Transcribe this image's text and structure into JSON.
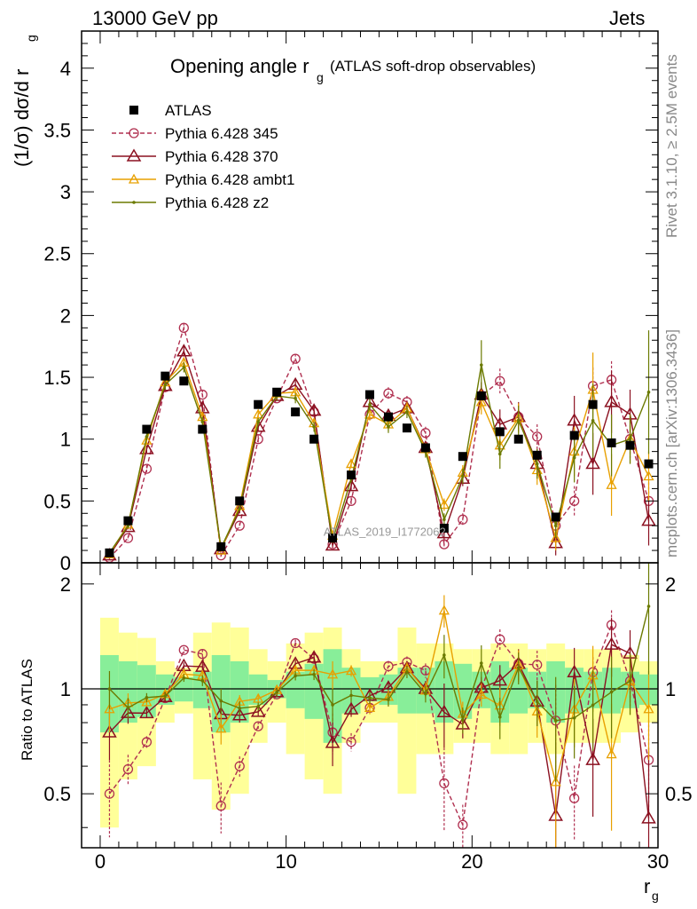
{
  "header": {
    "left": "13000 GeV pp",
    "right": "Jets"
  },
  "side_labels": {
    "rivet": "Rivet 3.1.10, ≥ 2.5M events",
    "mcplots": "mcplots.cern.ch [arXiv:1306.3436]"
  },
  "chart_data": {
    "type": "scatter",
    "title": "Opening angle r",
    "title_sub": "g",
    "title_suffix": "(ATLAS soft-drop observables)",
    "watermark": "ATLAS_2019_I1772062",
    "xlabel": "r",
    "xlabel_sub": "g",
    "ylabel": "(1/σ) dσ/d r",
    "ylabel_sub": "g",
    "ratio_ylabel": "Ratio to ATLAS",
    "xlim": [
      -1,
      30
    ],
    "ylim": [
      0,
      4.3
    ],
    "ratio_ylim": [
      0.35,
      2.3
    ],
    "ratio_log": true,
    "x_ticks": [
      "0",
      "10",
      "20",
      "30"
    ],
    "y_ticks": [
      "0",
      "0.5",
      "1",
      "1.5",
      "2",
      "2.5",
      "3",
      "3.5",
      "4"
    ],
    "ratio_ticks": [
      "0.5",
      "1",
      "2"
    ],
    "legend_position": "top-left",
    "x": [
      0.5,
      1.5,
      2.5,
      3.5,
      4.5,
      5.5,
      6.5,
      7.5,
      8.5,
      9.5,
      10.5,
      11.5,
      12.5,
      13.5,
      14.5,
      15.5,
      16.5,
      17.5,
      18.5,
      19.5,
      20.5,
      21.5,
      22.5,
      23.5,
      24.5,
      25.5,
      26.5,
      27.5,
      28.5,
      29.5
    ],
    "data": {
      "name": "ATLAS",
      "color": "#000000",
      "values": [
        0.08,
        0.34,
        1.08,
        1.51,
        1.47,
        1.08,
        0.13,
        0.5,
        1.28,
        1.38,
        1.22,
        1.0,
        0.2,
        0.71,
        1.36,
        1.18,
        1.09,
        0.93,
        0.28,
        0.86,
        1.35,
        1.06,
        1.0,
        0.87,
        0.37,
        1.03,
        1.28,
        0.97,
        0.95,
        0.8
      ],
      "band_inner": [
        0.25,
        0.2,
        0.17,
        0.1,
        0.08,
        0.12,
        0.25,
        0.2,
        0.1,
        0.06,
        0.12,
        0.18,
        0.3,
        0.15,
        0.08,
        0.1,
        0.15,
        0.15,
        0.2,
        0.18,
        0.12,
        0.2,
        0.15,
        0.12,
        0.2,
        0.15,
        0.12,
        0.15,
        0.12,
        0.1
      ],
      "band_outer": [
        0.6,
        0.45,
        0.4,
        0.2,
        0.15,
        0.45,
        0.55,
        0.5,
        0.3,
        0.2,
        0.35,
        0.45,
        0.5,
        0.3,
        0.2,
        0.2,
        0.5,
        0.35,
        0.35,
        0.3,
        0.3,
        0.35,
        0.35,
        0.3,
        0.35,
        0.3,
        0.3,
        0.3,
        0.25,
        0.2
      ]
    },
    "series": [
      {
        "name": "Pythia 6.428 345",
        "color": "#b03050",
        "marker": "open-circle",
        "dash": true,
        "values": [
          0.04,
          0.2,
          0.76,
          1.42,
          1.9,
          1.36,
          0.06,
          0.3,
          1.0,
          1.33,
          1.65,
          1.22,
          0.15,
          0.5,
          1.2,
          1.37,
          1.3,
          1.05,
          0.15,
          0.35,
          1.35,
          1.47,
          1.18,
          1.02,
          0.3,
          0.5,
          1.43,
          1.48,
          1.0,
          0.5
        ],
        "err": [
          0.01,
          0.02,
          0.03,
          0.04,
          0.04,
          0.04,
          0.01,
          0.02,
          0.03,
          0.04,
          0.04,
          0.04,
          0.02,
          0.03,
          0.05,
          0.05,
          0.05,
          0.05,
          0.04,
          0.05,
          0.08,
          0.1,
          0.1,
          0.1,
          0.08,
          0.12,
          0.15,
          0.15,
          0.15,
          0.15
        ]
      },
      {
        "name": "Pythia 6.428 370",
        "color": "#8b1020",
        "marker": "open-triangle",
        "dash": false,
        "values": [
          0.06,
          0.29,
          0.92,
          1.43,
          1.71,
          1.25,
          0.11,
          0.42,
          1.1,
          1.35,
          1.44,
          1.23,
          0.14,
          0.62,
          1.3,
          1.19,
          1.25,
          0.93,
          0.24,
          0.68,
          1.36,
          1.12,
          1.18,
          0.8,
          0.16,
          1.15,
          0.8,
          1.3,
          1.2,
          0.34
        ],
        "err": [
          0.01,
          0.02,
          0.03,
          0.04,
          0.04,
          0.04,
          0.01,
          0.02,
          0.03,
          0.04,
          0.04,
          0.04,
          0.02,
          0.03,
          0.05,
          0.05,
          0.05,
          0.05,
          0.05,
          0.06,
          0.1,
          0.12,
          0.12,
          0.12,
          0.1,
          0.2,
          0.25,
          0.25,
          0.2,
          0.2
        ]
      },
      {
        "name": "Pythia 6.428 ambt1",
        "color": "#e8a000",
        "marker": "open-triangle-small",
        "dash": false,
        "values": [
          0.07,
          0.31,
          0.99,
          1.46,
          1.62,
          1.18,
          0.1,
          0.46,
          1.2,
          1.37,
          1.38,
          1.13,
          0.22,
          0.8,
          1.2,
          1.12,
          1.25,
          0.92,
          0.47,
          0.73,
          1.3,
          0.95,
          1.17,
          0.75,
          0.2,
          0.9,
          1.4,
          0.63,
          1.0,
          0.7
        ],
        "err": [
          0.01,
          0.02,
          0.03,
          0.04,
          0.04,
          0.04,
          0.01,
          0.02,
          0.03,
          0.04,
          0.04,
          0.04,
          0.02,
          0.03,
          0.05,
          0.05,
          0.05,
          0.05,
          0.05,
          0.06,
          0.1,
          0.12,
          0.12,
          0.12,
          0.1,
          0.2,
          0.3,
          0.25,
          0.2,
          0.2
        ]
      },
      {
        "name": "Pythia 6.428 z2",
        "color": "#6b7a00",
        "marker": "dot",
        "dash": false,
        "values": [
          0.08,
          0.3,
          1.02,
          1.44,
          1.58,
          1.14,
          0.12,
          0.44,
          1.14,
          1.35,
          1.33,
          1.1,
          0.18,
          0.68,
          1.28,
          1.1,
          1.22,
          0.9,
          0.35,
          0.7,
          1.6,
          0.88,
          1.15,
          0.8,
          0.3,
          0.85,
          1.15,
          0.95,
          1.0,
          1.38
        ],
        "err": [
          0.01,
          0.02,
          0.03,
          0.04,
          0.04,
          0.04,
          0.01,
          0.02,
          0.03,
          0.04,
          0.04,
          0.04,
          0.02,
          0.03,
          0.05,
          0.05,
          0.05,
          0.05,
          0.05,
          0.06,
          0.2,
          0.12,
          0.12,
          0.12,
          0.1,
          0.2,
          0.3,
          0.25,
          0.2,
          0.5
        ]
      }
    ]
  }
}
